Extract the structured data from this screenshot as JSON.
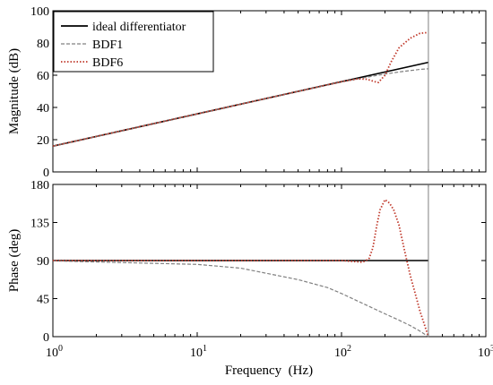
{
  "chart_data": [
    {
      "type": "line",
      "xscale": "log",
      "xlim": [
        1,
        1000
      ],
      "ylim": [
        0,
        100
      ],
      "ylabel": "Magnitude (dB)",
      "xlabel": "",
      "xticks": [
        1,
        10,
        100,
        1000
      ],
      "yticks": [
        0,
        20,
        40,
        60,
        80,
        100
      ],
      "ytick_labels": [
        "0",
        "20",
        "40",
        "60",
        "80",
        "100"
      ],
      "vline_x": 400,
      "legend": {
        "location": "top-left",
        "entries": [
          "ideal differentiator",
          "BDF1",
          "BDF6"
        ]
      },
      "series": [
        {
          "name": "ideal differentiator",
          "color": "#000000",
          "style": "solid",
          "x": [
            1,
            10,
            100,
            400
          ],
          "y": [
            16,
            36,
            56,
            68
          ]
        },
        {
          "name": "BDF1",
          "color": "#808080",
          "style": "dashed",
          "x": [
            1,
            10,
            50,
            100,
            150,
            200,
            250,
            300,
            350,
            400
          ],
          "y": [
            16,
            36,
            50,
            55.8,
            58.8,
            60.7,
            62.0,
            62.9,
            63.6,
            64
          ]
        },
        {
          "name": "BDF6",
          "color": "#c0392b",
          "style": "dotted",
          "x": [
            1,
            10,
            100,
            130,
            150,
            170,
            180,
            200,
            220,
            250,
            300,
            350,
            400
          ],
          "y": [
            16,
            36,
            56,
            57.8,
            57.5,
            56,
            55.5,
            60,
            68,
            77,
            83,
            86,
            86.5
          ]
        }
      ]
    },
    {
      "type": "line",
      "xscale": "log",
      "xlim": [
        1,
        1000
      ],
      "ylim": [
        0,
        180
      ],
      "ylabel": "Phase (deg)",
      "xlabel": "Frequency (Hz)",
      "xticks": [
        1,
        10,
        100,
        1000
      ],
      "xtick_labels": [
        "10^0",
        "10^1",
        "10^2",
        "10^3"
      ],
      "yticks": [
        0,
        45,
        90,
        135,
        180
      ],
      "ytick_labels": [
        "0",
        "45",
        "90",
        "135",
        "180"
      ],
      "vline_x": 400,
      "series": [
        {
          "name": "ideal differentiator",
          "color": "#000000",
          "style": "solid",
          "x": [
            1,
            400
          ],
          "y": [
            90,
            90
          ]
        },
        {
          "name": "BDF1",
          "color": "#808080",
          "style": "dashed",
          "x": [
            1,
            10,
            20,
            50,
            80,
            100,
            150,
            200,
            250,
            300,
            350,
            400
          ],
          "y": [
            89.6,
            85.5,
            81,
            67.5,
            58,
            51,
            37,
            27,
            19.5,
            13,
            6.5,
            0
          ]
        },
        {
          "name": "BDF6",
          "color": "#c0392b",
          "style": "dotted",
          "x": [
            1,
            10,
            100,
            140,
            155,
            165,
            175,
            185,
            200,
            215,
            230,
            250,
            275,
            300,
            350,
            400
          ],
          "y": [
            90,
            90,
            90,
            88,
            92,
            105,
            130,
            150,
            162,
            158,
            150,
            132,
            100,
            72,
            30,
            0
          ]
        }
      ]
    }
  ],
  "legend_labels": [
    "ideal differentiator",
    "BDF1",
    "BDF6"
  ],
  "labels": {
    "top_ylabel": "Magnitude (dB)",
    "bottom_ylabel": "Phase (deg)",
    "xlabel": "Frequency  (Hz)",
    "xtick_base": "10",
    "xtick_exps": [
      "0",
      "1",
      "2",
      "3"
    ]
  }
}
